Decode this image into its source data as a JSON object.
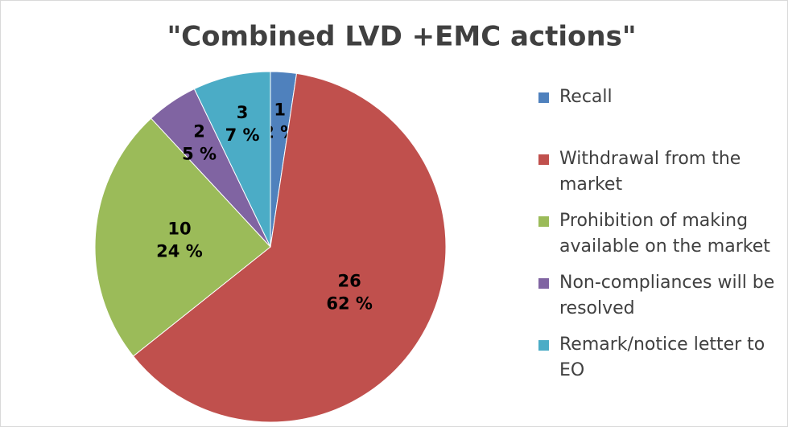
{
  "chart_data": {
    "type": "pie",
    "title": "\"Combined LVD +EMC actions\"",
    "categories": [
      "Recall",
      "Withdrawal from the market",
      "Prohibition of making available on the market",
      "Non-compliances will be resolved",
      "Remark/notice letter to EO"
    ],
    "values": [
      1,
      26,
      10,
      2,
      3
    ],
    "percent_labels": [
      "2 %",
      "62 %",
      "24 %",
      "5 %",
      "7 %"
    ],
    "colors": [
      "#4f81bd",
      "#c0504d",
      "#9bbb59",
      "#8064a2",
      "#4bacc6"
    ],
    "legend": "right"
  }
}
